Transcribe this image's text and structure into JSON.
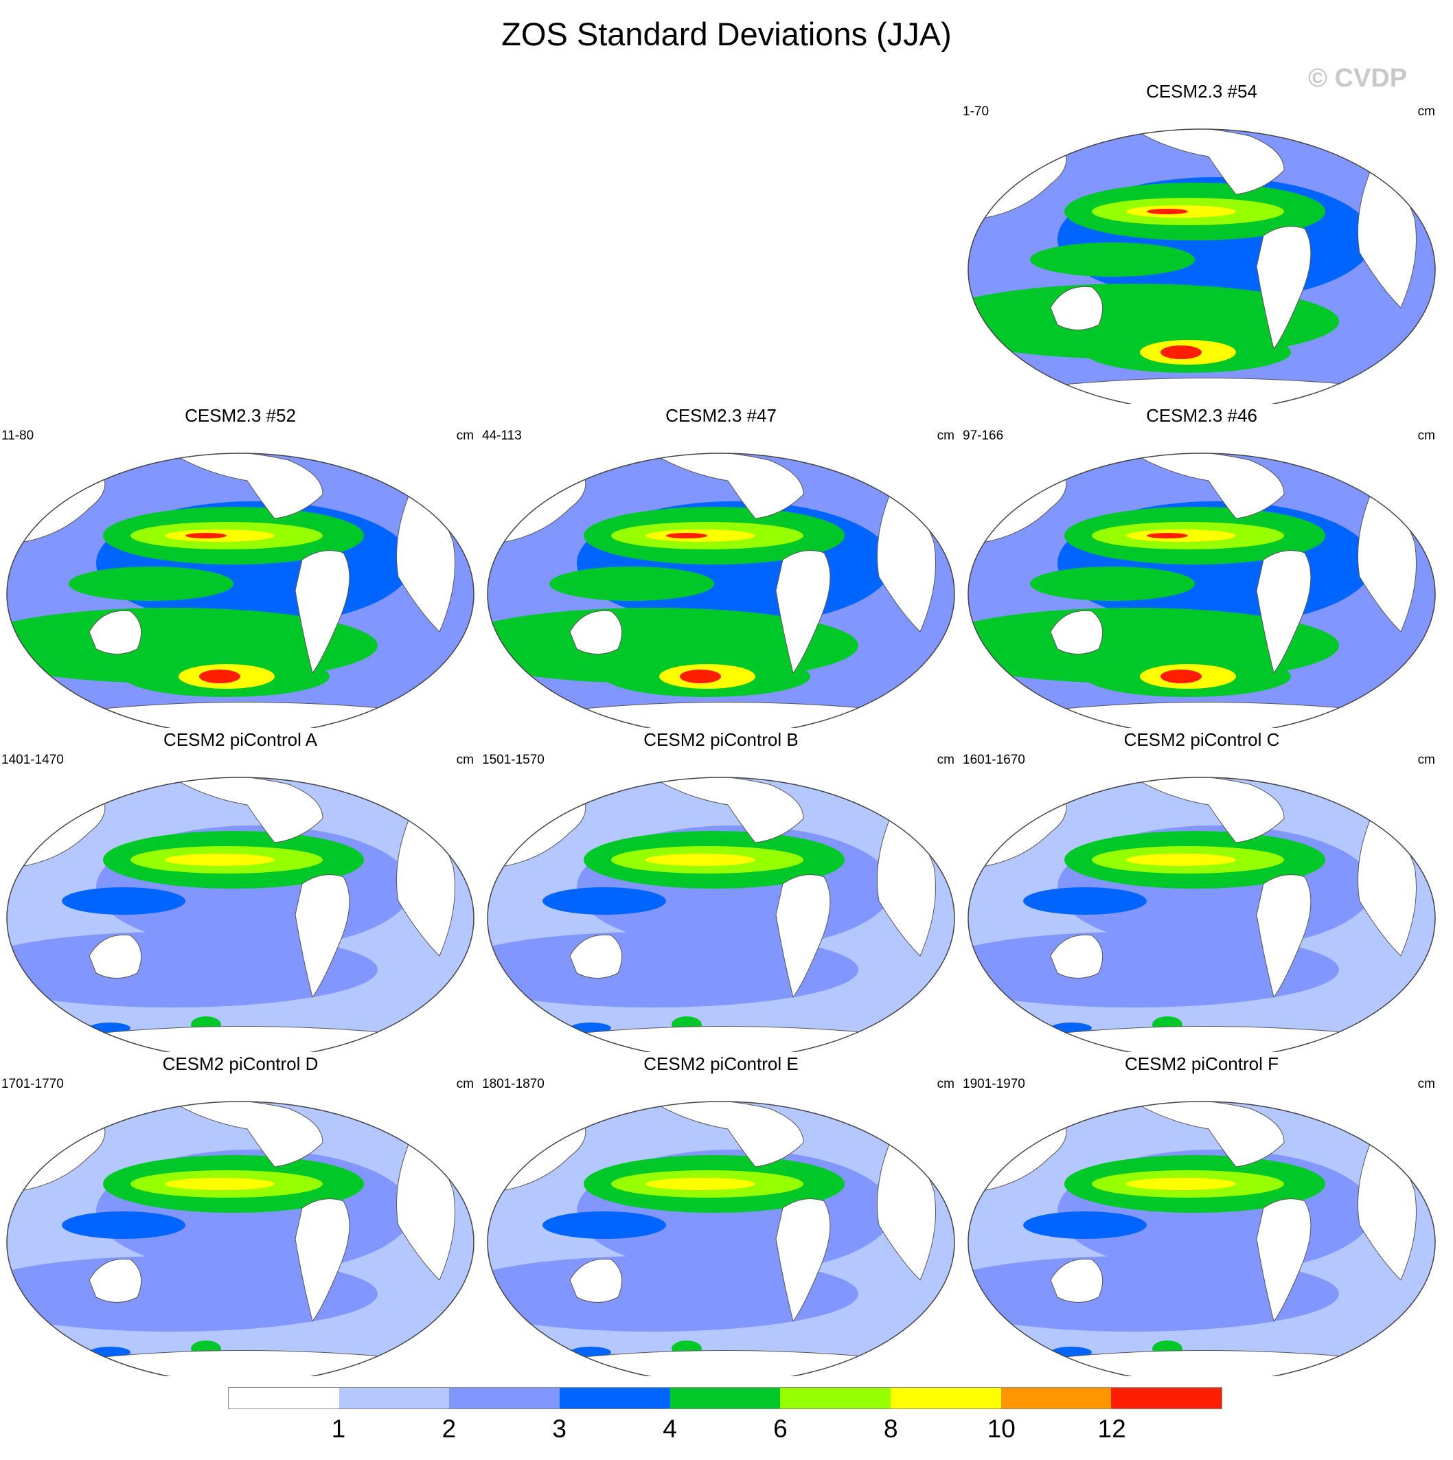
{
  "title": "ZOS Standard Deviations (JJA)",
  "watermark": "© CVDP",
  "units": "cm",
  "panels": [
    {
      "title": "CESM2.3 #54",
      "years": "1-70",
      "variant": "high"
    },
    {
      "title": "CESM2.3 #52",
      "years": "11-80",
      "variant": "high"
    },
    {
      "title": "CESM2.3 #47",
      "years": "44-113",
      "variant": "high"
    },
    {
      "title": "CESM2.3 #46",
      "years": "97-166",
      "variant": "high"
    },
    {
      "title": "CESM2 piControl A",
      "years": "1401-1470",
      "variant": "low"
    },
    {
      "title": "CESM2 piControl B",
      "years": "1501-1570",
      "variant": "low"
    },
    {
      "title": "CESM2 piControl C",
      "years": "1601-1670",
      "variant": "low"
    },
    {
      "title": "CESM2 piControl D",
      "years": "1701-1770",
      "variant": "low"
    },
    {
      "title": "CESM2 piControl E",
      "years": "1801-1870",
      "variant": "low"
    },
    {
      "title": "CESM2 piControl F",
      "years": "1901-1970",
      "variant": "low"
    }
  ],
  "colorbar": {
    "colors": [
      "#ffffff",
      "#b4c8ff",
      "#8296ff",
      "#0064ff",
      "#00c828",
      "#96ff00",
      "#ffff00",
      "#ff9600",
      "#ff1e00"
    ],
    "labels": [
      "1",
      "2",
      "3",
      "4",
      "6",
      "8",
      "10",
      "12"
    ]
  }
}
